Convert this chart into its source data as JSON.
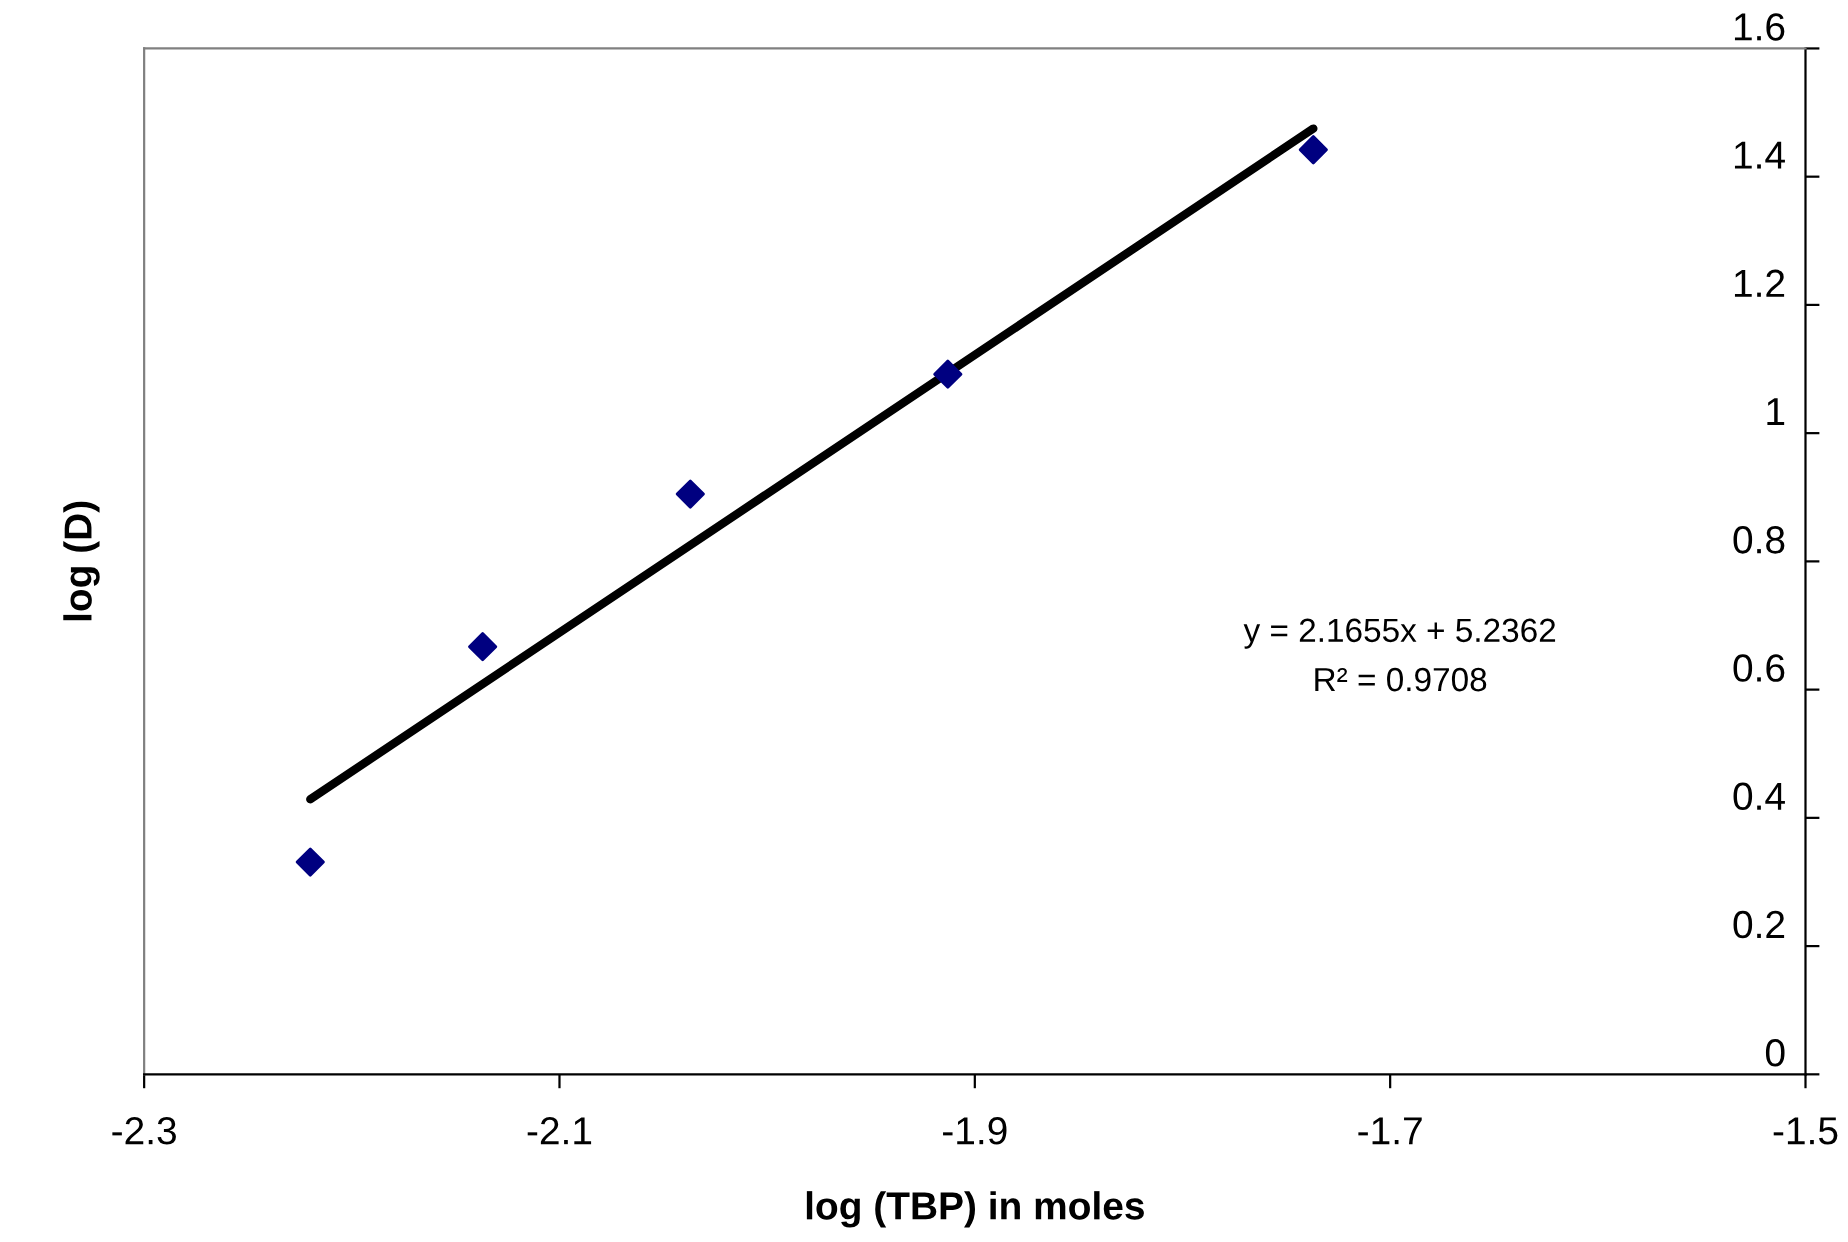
{
  "chart_data": {
    "type": "scatter",
    "xlabel": "log (TBP) in moles",
    "ylabel": "log (D)",
    "x": [
      -2.22,
      -2.137,
      -2.037,
      -1.913,
      -1.737
    ],
    "series": [
      {
        "color": "#000080",
        "marker": "diamond",
        "values": [
          0.331,
          0.667,
          0.905,
          1.092,
          1.442
        ]
      },
      {
        "type": "line",
        "color": "#000000",
        "marker": "none",
        "line_style": "solid",
        "x": [
          -2.22,
          -1.737
        ],
        "values": [
          0.429,
          1.475
        ]
      }
    ],
    "xlim": [
      -2.3,
      -1.5
    ],
    "xticks": [
      -2.3,
      -2.1,
      -1.9,
      -1.7,
      -1.5
    ],
    "ylim": [
      0,
      1.6
    ],
    "yticks": [
      0,
      0.2,
      0.4,
      0.6,
      0.8,
      1,
      1.2,
      1.4,
      1.6
    ],
    "annotations": [
      "y = 2.1655x + 5.2362",
      "R² = 0.9708"
    ],
    "grid": false,
    "legend": false
  }
}
